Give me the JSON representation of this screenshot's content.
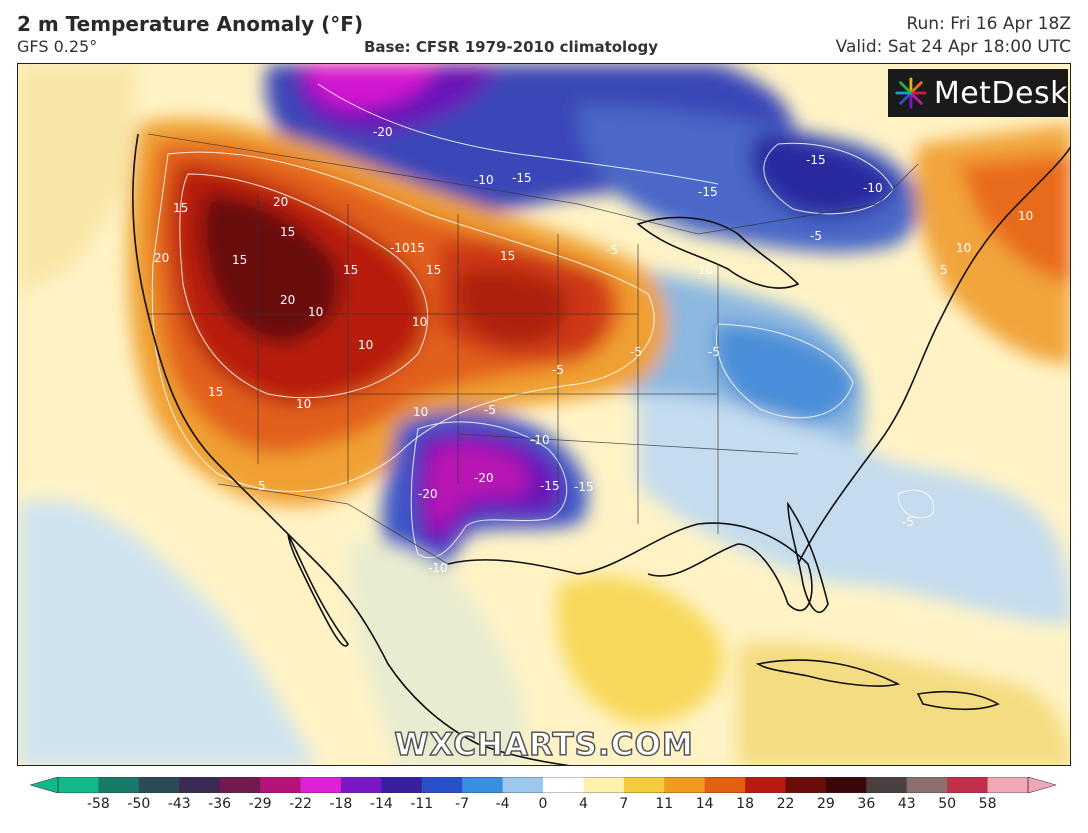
{
  "header": {
    "title": "2 m Temperature Anomaly (°F)",
    "model": "GFS 0.25°",
    "base": "Base: CFSR 1979-2010 climatology",
    "run": "Run: Fri 16 Apr 18Z",
    "valid": "Valid: Sat 24 Apr 18:00 UTC"
  },
  "logo": {
    "text": "MetDesk",
    "icon": "starburst-logo-icon"
  },
  "watermark": "WXCHARTS.COM",
  "contour_labels": [
    {
      "id": "l1",
      "text": "-20"
    },
    {
      "id": "l2",
      "text": "-10"
    },
    {
      "id": "l3",
      "text": "-15"
    },
    {
      "id": "l4",
      "text": "-15"
    },
    {
      "id": "l5",
      "text": "-15"
    },
    {
      "id": "l6",
      "text": "-10"
    },
    {
      "id": "l7",
      "text": "15"
    },
    {
      "id": "l8",
      "text": "20"
    },
    {
      "id": "l9",
      "text": "15"
    },
    {
      "id": "l10",
      "text": "20"
    },
    {
      "id": "l11",
      "text": "15"
    },
    {
      "id": "l12",
      "text": "-1015"
    },
    {
      "id": "l13",
      "text": "15"
    },
    {
      "id": "l14",
      "text": "15"
    },
    {
      "id": "l15",
      "text": "15"
    },
    {
      "id": "l16",
      "text": "20"
    },
    {
      "id": "l17",
      "text": "10"
    },
    {
      "id": "l18",
      "text": "10"
    },
    {
      "id": "l19",
      "text": "10"
    },
    {
      "id": "l20",
      "text": "15"
    },
    {
      "id": "l21",
      "text": "10"
    },
    {
      "id": "l22",
      "text": "10"
    },
    {
      "id": "l23",
      "text": "-5"
    },
    {
      "id": "l24",
      "text": "-5"
    },
    {
      "id": "l25",
      "text": "-5"
    },
    {
      "id": "l26",
      "text": "-5"
    },
    {
      "id": "l27",
      "text": "10"
    },
    {
      "id": "l28",
      "text": "5"
    },
    {
      "id": "l29",
      "text": "10"
    },
    {
      "id": "l30",
      "text": "-10"
    },
    {
      "id": "l31",
      "text": "-20"
    },
    {
      "id": "l32",
      "text": "-15"
    },
    {
      "id": "l33",
      "text": "-15"
    },
    {
      "id": "l34",
      "text": "-20"
    },
    {
      "id": "l35",
      "text": "-10"
    },
    {
      "id": "l36",
      "text": "-5"
    },
    {
      "id": "l37",
      "text": "5"
    },
    {
      "id": "l38",
      "text": "-5"
    },
    {
      "id": "l39",
      "text": "10"
    },
    {
      "id": "l40",
      "text": "-5"
    }
  ],
  "colorbar": {
    "ticks": [
      "-58",
      "-50",
      "-43",
      "-36",
      "-29",
      "-22",
      "-18",
      "-14",
      "-11",
      "-7",
      "-4",
      "0",
      "4",
      "7",
      "11",
      "14",
      "18",
      "22",
      "29",
      "36",
      "43",
      "50",
      "58"
    ],
    "colors": [
      "#11b98a",
      "#1a7a6a",
      "#2a4a55",
      "#3a2a55",
      "#701a50",
      "#b4147a",
      "#e020d8",
      "#7a18c8",
      "#3a1ea0",
      "#2850c8",
      "#3a8ee0",
      "#9cc8ee",
      "#ffffff",
      "#fff2b0",
      "#f5cc3c",
      "#f09a20",
      "#e26010",
      "#b81c10",
      "#6a0e0c",
      "#3a0808",
      "#4a4040",
      "#8a7070",
      "#c0304a",
      "#f0a8b8"
    ]
  }
}
